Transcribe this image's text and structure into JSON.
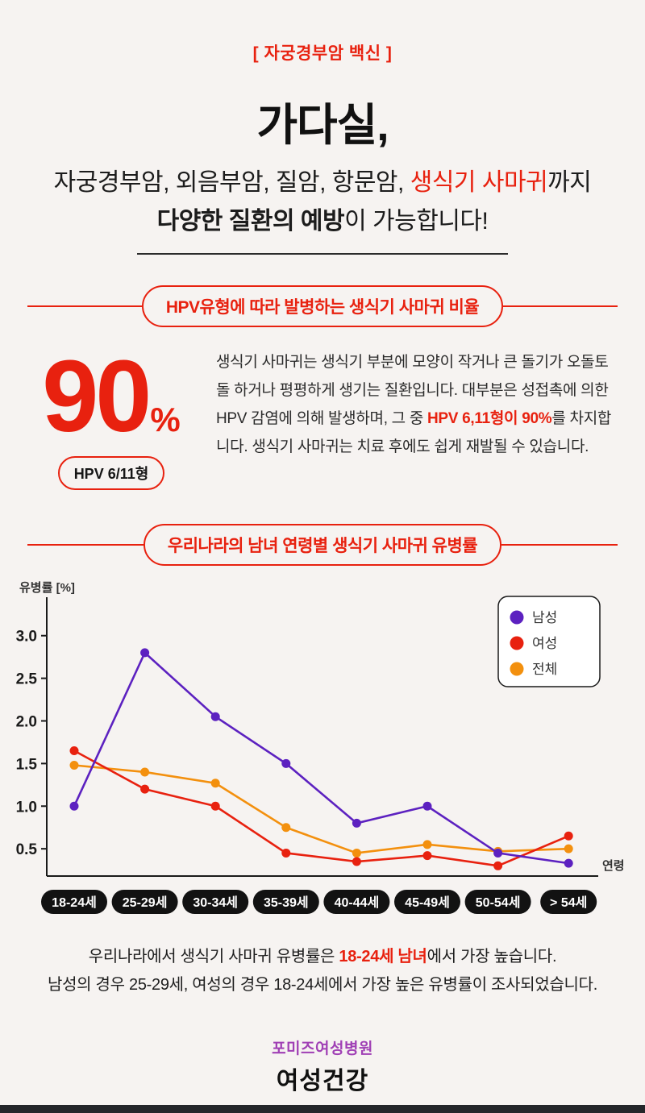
{
  "colors": {
    "accent_red": "#e8210f",
    "male_purple": "#5c21c0",
    "female_red": "#e8210f",
    "total_orange": "#f3900e",
    "footer_purple": "#a040b5"
  },
  "header": {
    "tag": "[ 자궁경부암 백신 ]",
    "title": "가다실,",
    "line1_pre": "자궁경부암, 외음부암, 질암, 항문암, ",
    "line1_highlight": "생식기 사마귀",
    "line1_post": "까지",
    "line2_bold": "다양한 질환의 예방",
    "line2_rest": "이 가능합니다!"
  },
  "section1": {
    "badge": "HPV유형에 따라 발병하는 생식기 사마귀 비율",
    "big_number": "90",
    "percent_sign": "%",
    "sub_badge": "HPV 6/11형",
    "para_pre": "생식기 사마귀는 생식기 부분에 모양이 작거나 큰 돌기가 오돌토돌 하거나 평평하게 생기는 질환입니다. 대부분은 성접촉에 의한 HPV 감염에 의해 발생하며, 그 중 ",
    "para_highlight": "HPV 6,11형이 90%",
    "para_post": "를 차지합니다. 생식기 사마귀는 치료 후에도 쉽게 재발될 수 있습니다."
  },
  "section2": {
    "badge": "우리나라의 남녀 연령별 생식기 사마귀 유병률"
  },
  "chart_data": {
    "type": "line",
    "title": "우리나라의 남녀 연령별 생식기 사마귀 유병률",
    "ylabel": "유병률 [%]",
    "xlabel": "연령",
    "categories": [
      "18-24세",
      "25-29세",
      "30-34세",
      "35-39세",
      "40-44세",
      "45-49세",
      "50-54세",
      "> 54세"
    ],
    "yticks": [
      0.5,
      1.0,
      1.5,
      2.0,
      2.5,
      3.0
    ],
    "ylim": [
      0.18,
      3.3
    ],
    "grid": false,
    "legend_position": "top-right",
    "series": [
      {
        "name": "남성",
        "color": "#5c21c0",
        "values": [
          1.0,
          2.8,
          2.05,
          1.5,
          0.8,
          1.0,
          0.45,
          0.33
        ]
      },
      {
        "name": "여성",
        "color": "#e8210f",
        "values": [
          1.65,
          1.2,
          1.0,
          0.45,
          0.35,
          0.42,
          0.3,
          0.65
        ]
      },
      {
        "name": "전체",
        "color": "#f3900e",
        "values": [
          1.48,
          1.4,
          1.27,
          0.75,
          0.45,
          0.55,
          0.47,
          0.5
        ]
      }
    ]
  },
  "footnote": {
    "line1_pre": "우리나라에서 생식기 사마귀 유병률은 ",
    "line1_highlight": "18-24세 남녀",
    "line1_post": "에서 가장 높습니다.",
    "line2": "남성의 경우 25-29세, 여성의 경우 18-24세에서 가장 높은 유병률이 조사되었습니다."
  },
  "footer": {
    "hospital": "포미즈여성병원",
    "brand": "여성건강"
  }
}
